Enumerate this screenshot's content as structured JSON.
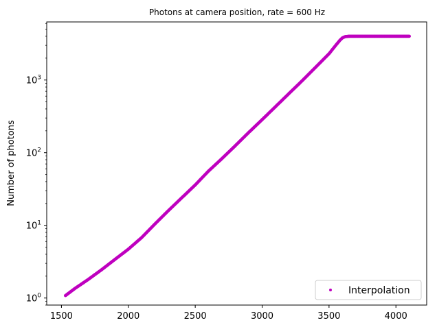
{
  "chart_data": {
    "type": "scatter",
    "title": "Photons at camera position, rate = 600 Hz",
    "xlabel": "",
    "ylabel": "Number of photons",
    "yscale": "log",
    "xlim": [
      1390,
      4230
    ],
    "ylim": [
      0.8,
      6300
    ],
    "xticks": [
      1500,
      2000,
      2500,
      3000,
      3500,
      4000
    ],
    "xtick_labels": [
      "1500",
      "2000",
      "2500",
      "3000",
      "3500",
      "4000"
    ],
    "yticks": [
      1,
      10,
      100,
      1000
    ],
    "ytick_labels": [
      [
        "10",
        "0"
      ],
      [
        "10",
        "1"
      ],
      [
        "10",
        "2"
      ],
      [
        "10",
        "3"
      ]
    ],
    "grid": false,
    "legend_position": "bottom-right",
    "series": [
      {
        "name": "Interpolation",
        "color": "#bf00bf",
        "x": [
          1530,
          1600,
          1700,
          1800,
          1900,
          2000,
          2100,
          2200,
          2300,
          2400,
          2500,
          2600,
          2700,
          2800,
          2900,
          3000,
          3100,
          3200,
          3300,
          3400,
          3500,
          3550,
          3580,
          3600,
          3620,
          3650,
          3700,
          3800,
          3900,
          4000,
          4100
        ],
        "y": [
          1.08,
          1.35,
          1.8,
          2.45,
          3.4,
          4.7,
          6.8,
          10.5,
          16,
          24,
          36,
          56,
          83,
          125,
          190,
          285,
          430,
          650,
          980,
          1500,
          2300,
          3000,
          3500,
          3800,
          3950,
          4000,
          4000,
          4000,
          4000,
          4000,
          4000
        ]
      }
    ]
  }
}
